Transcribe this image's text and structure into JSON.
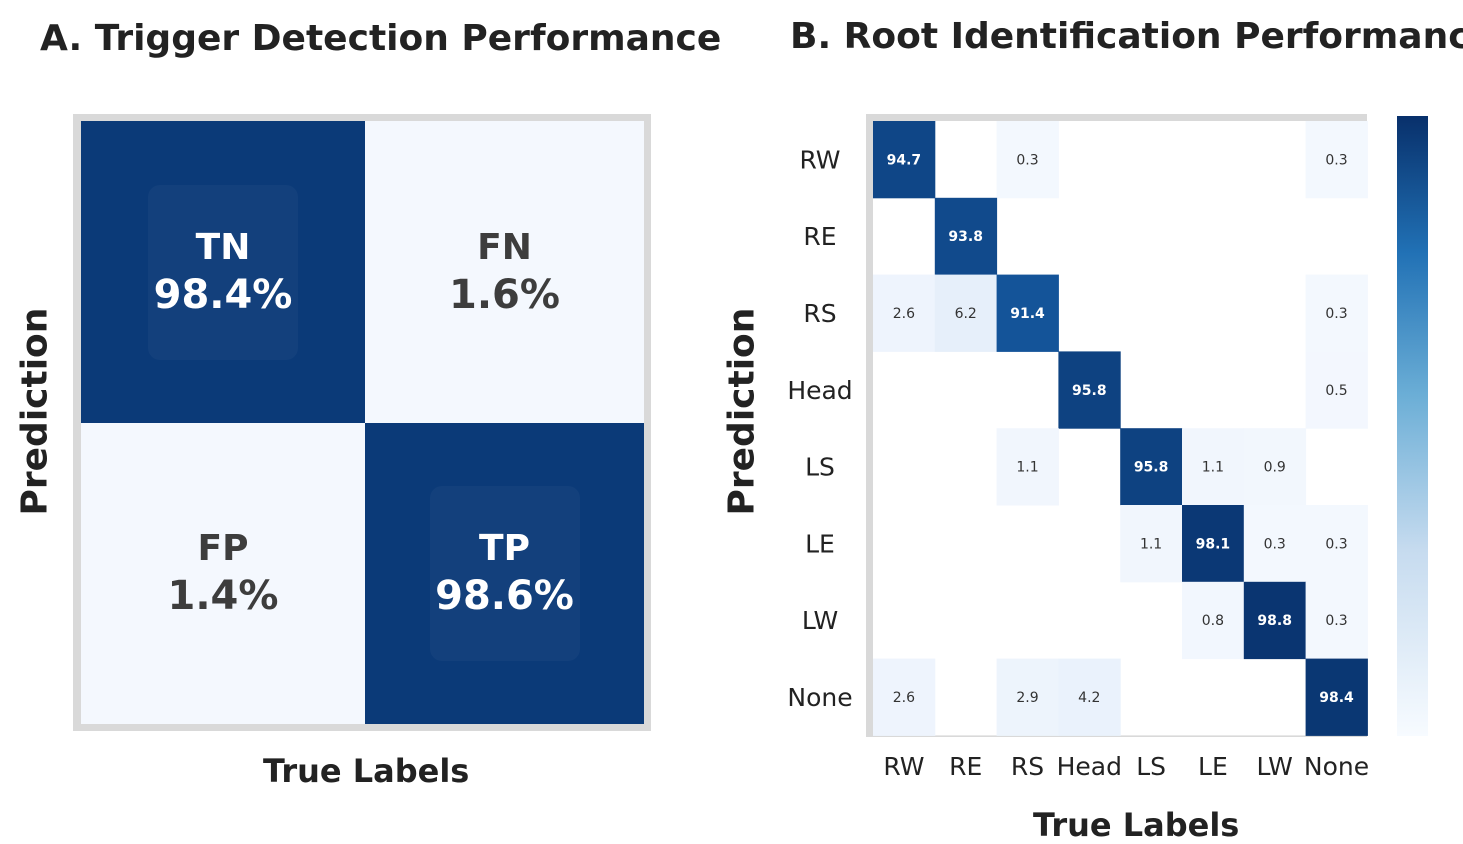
{
  "panel_a": {
    "title": "A. Trigger Detection Performance",
    "ylabel": "Prediction",
    "xlabel": "True Labels",
    "cells": [
      {
        "label": "TN",
        "value": "98.4%",
        "shade": "dark"
      },
      {
        "label": "FN",
        "value": "1.6%",
        "shade": "light"
      },
      {
        "label": "FP",
        "value": "1.4%",
        "shade": "light"
      },
      {
        "label": "TP",
        "value": "98.6%",
        "shade": "dark"
      }
    ]
  },
  "panel_b": {
    "title": "B. Root Identification Performance",
    "ylabel": "Prediction",
    "xlabel": "True Labels"
  },
  "colors": {
    "dark": "#0b3a78",
    "light": "#f4f8fe",
    "frame": "#d9d9d9"
  },
  "chart_data": [
    {
      "type": "heatmap",
      "title": "A. Trigger Detection Performance",
      "xlabel": "True Labels",
      "ylabel": "Prediction",
      "rows": [
        [
          "TN",
          "FN"
        ],
        [
          "FP",
          "TP"
        ]
      ],
      "values": [
        [
          98.4,
          1.6
        ],
        [
          1.4,
          98.6
        ]
      ],
      "unit": "%"
    },
    {
      "type": "heatmap",
      "title": "B. Root Identification Performance",
      "xlabel": "True Labels",
      "ylabel": "Prediction",
      "x_categories": [
        "RW",
        "RE",
        "RS",
        "Head",
        "LS",
        "LE",
        "LW",
        "None"
      ],
      "y_categories": [
        "RW",
        "RE",
        "RS",
        "Head",
        "LS",
        "LE",
        "LW",
        "None"
      ],
      "values": [
        [
          94.7,
          null,
          0.3,
          null,
          null,
          null,
          null,
          0.3
        ],
        [
          null,
          93.8,
          null,
          null,
          null,
          null,
          null,
          null
        ],
        [
          2.6,
          6.2,
          91.4,
          null,
          null,
          null,
          null,
          0.3
        ],
        [
          null,
          null,
          null,
          95.8,
          null,
          null,
          null,
          0.5
        ],
        [
          null,
          null,
          1.1,
          null,
          95.8,
          1.1,
          0.9,
          null
        ],
        [
          null,
          null,
          null,
          null,
          1.1,
          98.1,
          0.3,
          0.3
        ],
        [
          null,
          null,
          null,
          null,
          null,
          0.8,
          98.8,
          0.3
        ],
        [
          2.6,
          null,
          2.9,
          4.2,
          null,
          null,
          null,
          98.4
        ]
      ],
      "colorscale": "Blues",
      "colorbar": true
    }
  ]
}
